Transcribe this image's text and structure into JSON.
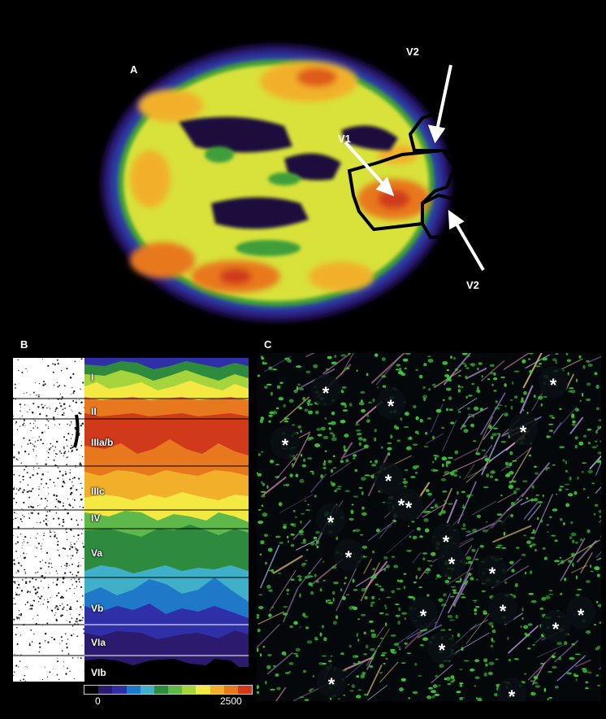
{
  "panels": {
    "a": {
      "letter": "A",
      "arrows": [
        {
          "label": "V2"
        },
        {
          "label": "V1"
        },
        {
          "label": "V2"
        }
      ]
    },
    "b": {
      "letter": "B",
      "layers": [
        "I",
        "II",
        "IIIa/b",
        "IIIc",
        "IV",
        "Va",
        "Vb",
        "VIa",
        "VIb"
      ],
      "scale": {
        "min": "0",
        "max": "2500"
      },
      "colormap": [
        "#000000",
        "#2b1a6e",
        "#2f2fa8",
        "#1f78c8",
        "#3fb0c8",
        "#2e8b3e",
        "#5fb84a",
        "#a6d43c",
        "#f4e842",
        "#f2b02a",
        "#e8781e",
        "#d03a1a"
      ]
    },
    "c": {
      "letter": "C",
      "asterisk_count": 20,
      "asterisk": "*"
    }
  }
}
